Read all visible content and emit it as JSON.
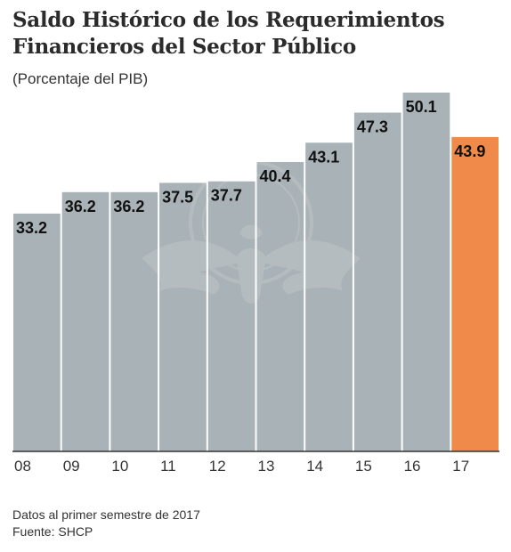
{
  "title": "Saldo Histórico de los Requerimientos Financieros del Sector Público",
  "subtitle": "(Porcentaje del PIB)",
  "footer": {
    "note": "Datos al primer semestre de 2017",
    "source": "Fuente: SHCP"
  },
  "colors": {
    "bar": "#a9b2b6",
    "highlight": "#f08a4b",
    "label": "#111111",
    "axis": "#333333"
  },
  "watermark": "eagle-emblem-watermark",
  "chart_data": {
    "type": "bar",
    "title": "Saldo Histórico de los Requerimientos Financieros del Sector Público",
    "subtitle": "(Porcentaje del PIB)",
    "xlabel": "",
    "ylabel": "",
    "categories": [
      "08",
      "09",
      "10",
      "11",
      "12",
      "13",
      "14",
      "15",
      "16",
      "17"
    ],
    "values": [
      33.2,
      36.2,
      36.2,
      37.5,
      37.7,
      40.4,
      43.1,
      47.3,
      50.1,
      43.9
    ],
    "data_labels": [
      "33.2",
      "36.2",
      "36.2",
      "37.5",
      "37.7",
      "40.4",
      "43.1",
      "47.3",
      "50.1",
      "43.9"
    ],
    "highlight_index": 9,
    "ylim": [
      0,
      50.1
    ],
    "grid": false,
    "legend": "none"
  }
}
